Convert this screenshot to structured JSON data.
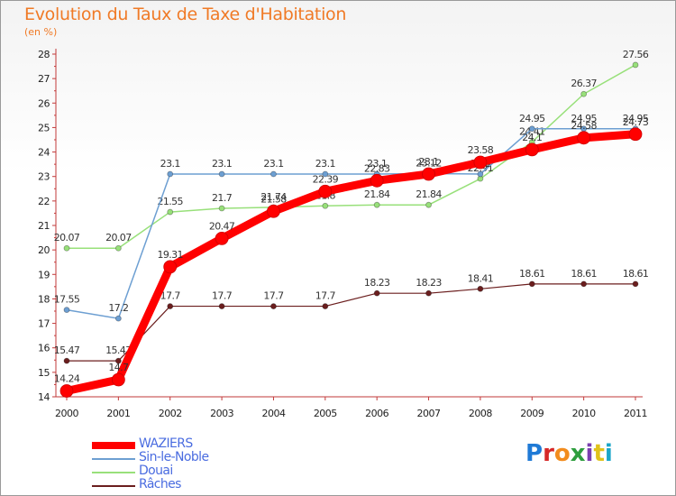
{
  "title": "Evolution du Taux de Taxe d'Habitation",
  "subtitle": "(en %)",
  "logo": {
    "text": "Proxiti",
    "colors": [
      "#1f7ad6",
      "#d62828",
      "#f28c1e",
      "#2e9e3e",
      "#7a3fb0",
      "#e0c21a",
      "#1aa6c8"
    ]
  },
  "chart_data": {
    "type": "line",
    "x": [
      "2000",
      "2001",
      "2002",
      "2003",
      "2004",
      "2005",
      "2006",
      "2007",
      "2008",
      "2009",
      "2010",
      "2011"
    ],
    "ylim": [
      14,
      28
    ],
    "yticks": [
      "14",
      "15",
      "16",
      "17",
      "18",
      "19",
      "20",
      "21",
      "22",
      "23",
      "24",
      "25",
      "26",
      "27",
      "28"
    ],
    "grid": false,
    "legend_position": "bottom-left",
    "series": [
      {
        "name": "Râches",
        "color": "#6b1e1e",
        "width": 1.2,
        "marker": 3,
        "values": [
          15.47,
          15.47,
          17.7,
          17.7,
          17.7,
          17.7,
          18.23,
          18.23,
          18.41,
          18.61,
          18.61,
          18.61
        ],
        "labels": [
          "15.47",
          "15.47",
          "17.7",
          "17.7",
          "17.7",
          "17.7",
          "18.23",
          "18.23",
          "18.41",
          "18.61",
          "18.61",
          "18.61"
        ]
      },
      {
        "name": "Douai",
        "color": "#98e07a",
        "width": 1.5,
        "marker": 3,
        "values": [
          20.07,
          20.07,
          21.55,
          21.7,
          21.74,
          21.8,
          21.84,
          21.84,
          22.91,
          24.41,
          26.37,
          27.56
        ],
        "labels": [
          "20.07",
          "20.07",
          "21.55",
          "21.7",
          "21.74",
          "21.8",
          "21.84",
          "21.84",
          "22.91",
          "24.41",
          "26.37",
          "27.56"
        ]
      },
      {
        "name": "Sin-le-Noble",
        "color": "#6d9fd2",
        "width": 1.5,
        "marker": 3,
        "values": [
          17.55,
          17.2,
          23.1,
          23.1,
          23.1,
          23.1,
          23.1,
          23.12,
          23.1,
          24.95,
          24.95,
          24.95
        ],
        "labels": [
          "17.55",
          "17.2",
          "23.1",
          "23.1",
          "23.1",
          "23.1",
          "23.1",
          "23.12",
          "23.1",
          "24.95",
          "24.95",
          "24.95"
        ]
      },
      {
        "name": "WAZIERS",
        "color": "#ff0000",
        "width": 9,
        "marker": 7,
        "values": [
          14.24,
          14.7,
          19.31,
          20.47,
          21.58,
          22.39,
          22.83,
          23.1,
          23.58,
          24.1,
          24.58,
          24.73
        ],
        "labels": [
          "14.24",
          "14.7",
          "19.31",
          "20.47",
          "21.58",
          "22.39",
          "22.83",
          "23.1",
          "23.58",
          "24.1",
          "24.58",
          "24.73"
        ]
      }
    ]
  }
}
